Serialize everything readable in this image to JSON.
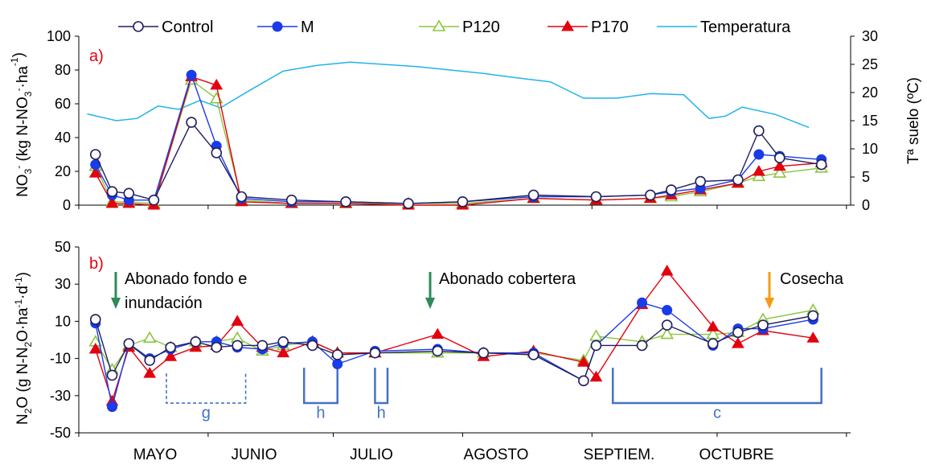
{
  "legend": [
    {
      "name": "Control",
      "color": "#1f1f5e",
      "marker": "open-circle"
    },
    {
      "name": "M",
      "color": "#1a3be8",
      "marker": "filled-circle"
    },
    {
      "name": "P120",
      "color": "#8dc63f",
      "marker": "open-triangle"
    },
    {
      "name": "P170",
      "color": "#e3000f",
      "marker": "filled-triangle"
    },
    {
      "name": "Temperatura",
      "color": "#1fb5e8",
      "marker": "line"
    }
  ],
  "months": [
    "MAYO",
    "JUNIO",
    "JULIO",
    "AGOSTO",
    "SEPTIEM.",
    "OCTUBRE"
  ],
  "chart_data": [
    {
      "type": "line",
      "panel_label": "a)",
      "ylabel_parts": [
        "NO",
        "3",
        "-",
        " (kg N-NO",
        "3",
        "-",
        "·ha",
        "-1",
        ")"
      ],
      "y2label": "Tª suelo (ºC)",
      "ylim": [
        0,
        100
      ],
      "yticks": [
        "0",
        "20",
        "40",
        "60",
        "80",
        "100"
      ],
      "y2lim": [
        0,
        30
      ],
      "y2ticks": [
        "0",
        "5",
        "10",
        "15",
        "20",
        "25",
        "30"
      ],
      "series": [
        {
          "name": "Control",
          "x": [
            4,
            8,
            12,
            18,
            27,
            33,
            39,
            51,
            64,
            79,
            92,
            109,
            124,
            137,
            142,
            149,
            158,
            163,
            168,
            178
          ],
          "values": [
            30,
            8,
            7,
            3,
            49,
            31,
            5,
            3,
            2,
            1,
            2,
            6,
            5,
            6,
            9,
            14,
            15,
            44,
            28,
            24
          ]
        },
        {
          "name": "M",
          "x": [
            4,
            8,
            12,
            18,
            27,
            33,
            39,
            51,
            64,
            79,
            92,
            109,
            124,
            137,
            142,
            149,
            158,
            163,
            168,
            178
          ],
          "values": [
            24,
            6,
            3,
            3,
            77,
            35,
            4,
            2,
            2,
            1,
            2,
            5,
            5,
            6,
            8,
            10,
            15,
            30,
            29,
            27
          ]
        },
        {
          "name": "P120",
          "x": [
            4,
            8,
            12,
            18,
            27,
            33,
            39,
            51,
            64,
            79,
            92,
            109,
            124,
            137,
            142,
            149,
            158,
            163,
            168,
            178
          ],
          "values": [
            23,
            2,
            2,
            1,
            74,
            63,
            3,
            1,
            1,
            1,
            1,
            4,
            3,
            4,
            5,
            8,
            13,
            17,
            19,
            22
          ]
        },
        {
          "name": "P170",
          "x": [
            4,
            8,
            12,
            18,
            27,
            33,
            39,
            51,
            64,
            79,
            92,
            109,
            124,
            137,
            142,
            149,
            158,
            163,
            168,
            178
          ],
          "values": [
            19,
            1,
            1,
            0,
            76,
            71,
            2,
            1,
            1,
            0,
            0,
            4,
            3,
            4,
            6,
            9,
            13,
            20,
            23,
            25
          ]
        },
        {
          "name": "Temperatura",
          "axis": "right",
          "x": [
            2,
            9,
            14,
            19,
            24,
            29,
            34,
            41,
            49,
            57,
            65,
            73,
            81,
            89,
            97,
            105,
            113,
            121,
            129,
            137,
            145,
            151,
            155,
            159,
            167,
            175
          ],
          "values": [
            16.2,
            15.0,
            15.4,
            17.6,
            17.0,
            18.6,
            17.3,
            20.4,
            23.8,
            24.8,
            25.4,
            25.0,
            24.6,
            24.0,
            23.4,
            22.6,
            21.9,
            19.0,
            19.0,
            19.8,
            19.6,
            15.4,
            15.8,
            17.4,
            16.1,
            13.8
          ]
        }
      ]
    },
    {
      "type": "line",
      "panel_label": "b)",
      "ylabel_parts": [
        "N",
        "2",
        "O (g N-N",
        "2",
        "O·ha",
        "-1",
        "·d",
        "-1",
        ")"
      ],
      "ylim": [
        -50,
        50
      ],
      "yticks": [
        "-50",
        "-30",
        "-10",
        "10",
        "30",
        "50"
      ],
      "series": [
        {
          "name": "Control",
          "x": [
            4,
            8,
            12,
            17,
            22,
            28,
            33,
            38,
            44,
            49,
            56,
            62,
            71,
            86,
            97,
            109,
            121,
            124,
            135,
            141,
            152,
            158,
            164,
            176
          ],
          "values": [
            11,
            -19,
            -2,
            -11,
            -4,
            -1,
            -4,
            -3,
            -3,
            -1,
            -3,
            -8,
            -7,
            -6,
            -7,
            -8,
            -22,
            -3,
            -3,
            8,
            -2,
            4,
            8,
            13
          ]
        },
        {
          "name": "M",
          "x": [
            4,
            8,
            12,
            17,
            22,
            28,
            33,
            38,
            44,
            49,
            56,
            62,
            71,
            86,
            97,
            109,
            121,
            124,
            135,
            141,
            152,
            158,
            164,
            176
          ],
          "values": [
            9,
            -36,
            -2,
            -10,
            -5,
            -1,
            -1,
            -4,
            -5,
            -2,
            -1,
            -13,
            -6,
            -5,
            -7,
            -7,
            -22,
            -3,
            20,
            16,
            -3,
            6,
            6,
            11
          ]
        },
        {
          "name": "P120",
          "x": [
            4,
            8,
            12,
            17,
            22,
            28,
            33,
            38,
            44,
            49,
            56,
            62,
            71,
            86,
            97,
            109,
            121,
            124,
            135,
            141,
            152,
            158,
            164,
            176
          ],
          "values": [
            -1,
            -16,
            -3,
            1,
            -4,
            -1,
            -1,
            1,
            -6,
            -3,
            -1,
            -7,
            -7,
            -7,
            -7,
            -7,
            -11,
            2,
            -1,
            3,
            3,
            4,
            11,
            16
          ]
        },
        {
          "name": "P170",
          "x": [
            4,
            8,
            12,
            17,
            22,
            28,
            33,
            38,
            44,
            49,
            56,
            62,
            71,
            86,
            97,
            109,
            121,
            124,
            135,
            141,
            152,
            158,
            164,
            176
          ],
          "values": [
            -5,
            -33,
            -4,
            -18,
            -9,
            -4,
            -3,
            10,
            -4,
            -7,
            -1,
            -7,
            -7,
            3,
            -9,
            -6,
            -12,
            -20,
            19,
            37,
            7,
            -2,
            5,
            1
          ]
        }
      ],
      "annotations": [
        "Abonado fondo e",
        "inundación",
        "Abonado cobertera",
        "Cosecha"
      ],
      "period_labels": [
        "g",
        "h",
        "h",
        "c"
      ]
    }
  ]
}
